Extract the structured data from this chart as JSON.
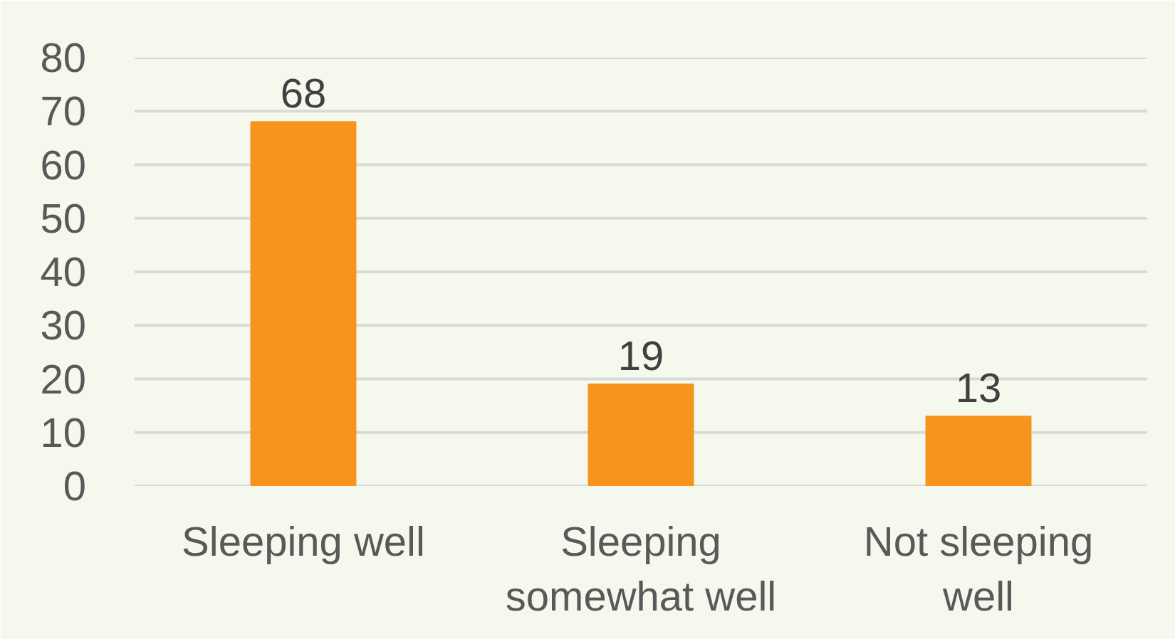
{
  "chart_data": {
    "type": "bar",
    "categories": [
      "Sleeping well",
      "Sleeping somewhat well",
      "Not sleeping well"
    ],
    "values": [
      68,
      19,
      13
    ],
    "color": "#f7941e",
    "ylim": [
      0,
      80
    ],
    "yticks": [
      0,
      10,
      20,
      30,
      40,
      50,
      60,
      70,
      80
    ],
    "grid": "y",
    "data_labels": true
  }
}
